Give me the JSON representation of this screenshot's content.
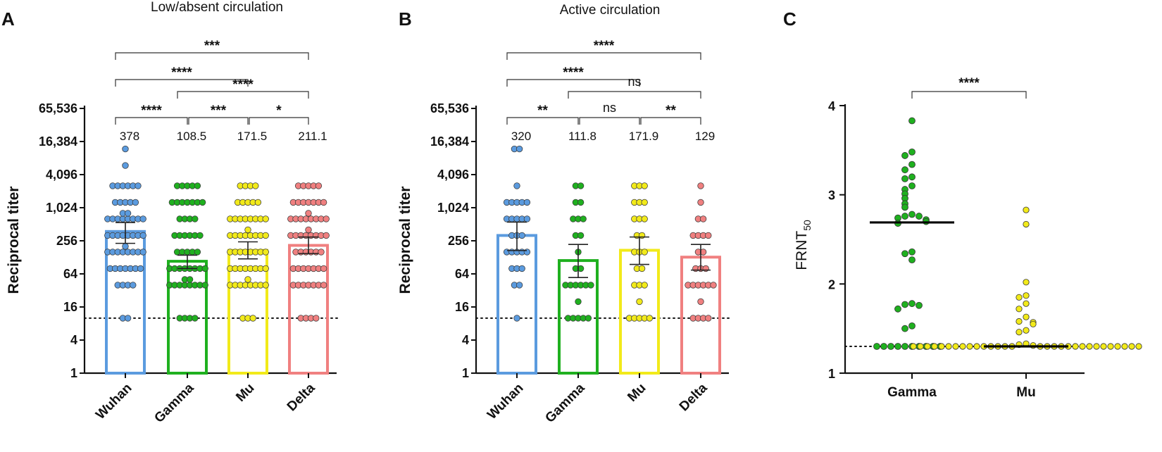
{
  "colors": {
    "wuhan": "#5b9bdf",
    "gamma": "#1fb01f",
    "mu": "#f2ea1a",
    "delta": "#f08080",
    "axis": "#111111"
  },
  "chart_data": [
    {
      "panel": "A",
      "type": "bar",
      "title": "Low/absent circulation",
      "ylabel": "Reciprocal titer",
      "yscale": "log2",
      "ylim": [
        1,
        65536
      ],
      "yticks": [
        1,
        4,
        16,
        64,
        256,
        1024,
        4096,
        16384,
        65536
      ],
      "ytick_labels": [
        "1",
        "4",
        "16",
        "64",
        "256",
        "1,024",
        "4,096",
        "16,384",
        "65,536"
      ],
      "threshold": 10,
      "categories": [
        "Wuhan",
        "Gamma",
        "Mu",
        "Delta"
      ],
      "values": [
        378,
        108.5,
        171.5,
        211.1
      ],
      "value_labels": [
        "378",
        "108.5",
        "171.5",
        "211.1"
      ],
      "error_low": [
        230,
        80,
        120,
        150
      ],
      "error_high": [
        550,
        140,
        245,
        300
      ],
      "points": {
        "Wuhan": [
          10,
          10,
          40,
          40,
          40,
          40,
          80,
          80,
          80,
          80,
          80,
          80,
          80,
          160,
          160,
          160,
          160,
          160,
          160,
          160,
          160,
          160,
          320,
          320,
          320,
          320,
          320,
          320,
          320,
          320,
          640,
          640,
          640,
          640,
          640,
          640,
          640,
          640,
          640,
          640,
          1280,
          1280,
          1280,
          1280,
          1280,
          2560,
          2560,
          2560,
          2560,
          2560,
          2560,
          6000,
          12000
        ],
        "Gamma": [
          10,
          10,
          10,
          10,
          40,
          40,
          40,
          40,
          40,
          40,
          40,
          40,
          40,
          40,
          80,
          80,
          80,
          80,
          80,
          80,
          80,
          80,
          160,
          160,
          160,
          160,
          160,
          320,
          320,
          320,
          320,
          320,
          320,
          640,
          640,
          640,
          640,
          1280,
          1280,
          1280,
          1280,
          1280,
          1280,
          1280,
          2560,
          2560,
          2560,
          2560,
          2560
        ],
        "Mu": [
          10,
          10,
          10,
          40,
          40,
          40,
          40,
          40,
          40,
          40,
          40,
          40,
          80,
          80,
          80,
          80,
          80,
          80,
          80,
          80,
          160,
          160,
          160,
          160,
          160,
          160,
          160,
          160,
          320,
          320,
          320,
          320,
          320,
          320,
          320,
          320,
          320,
          640,
          640,
          640,
          640,
          640,
          640,
          640,
          640,
          1280,
          1280,
          1280,
          1280,
          1280,
          2560,
          2560,
          2560,
          2560
        ],
        "Delta": [
          10,
          10,
          10,
          10,
          40,
          40,
          40,
          40,
          40,
          40,
          40,
          80,
          80,
          80,
          80,
          80,
          80,
          80,
          160,
          160,
          160,
          160,
          160,
          160,
          320,
          320,
          320,
          320,
          320,
          320,
          320,
          320,
          320,
          640,
          640,
          640,
          640,
          640,
          640,
          640,
          640,
          640,
          1280,
          1280,
          1280,
          1280,
          1280,
          1280,
          1280,
          2560,
          2560,
          2560,
          2560,
          2560
        ]
      },
      "comparisons": [
        {
          "from": "Wuhan",
          "to": "Gamma",
          "label": "****"
        },
        {
          "from": "Gamma",
          "to": "Mu",
          "label": "***"
        },
        {
          "from": "Mu",
          "to": "Delta",
          "label": "*"
        },
        {
          "from": "Wuhan",
          "to": "Mu",
          "label": "****"
        },
        {
          "from": "Gamma",
          "to": "Delta",
          "label": "****"
        },
        {
          "from": "Wuhan",
          "to": "Delta",
          "label": "***"
        }
      ]
    },
    {
      "panel": "B",
      "type": "bar",
      "title": "Active circulation",
      "ylabel": "Reciprocal titer",
      "yscale": "log2",
      "ylim": [
        1,
        65536
      ],
      "yticks": [
        1,
        4,
        16,
        64,
        256,
        1024,
        4096,
        16384,
        65536
      ],
      "ytick_labels": [
        "1",
        "4",
        "16",
        "64",
        "256",
        "1,024",
        "4,096",
        "16,384",
        "65,536"
      ],
      "threshold": 10,
      "categories": [
        "Wuhan",
        "Gamma",
        "Mu",
        "Delta"
      ],
      "values": [
        320,
        111.8,
        171.9,
        129
      ],
      "value_labels": [
        "320",
        "111.8",
        "171.9",
        "129"
      ],
      "error_low": [
        170,
        55,
        95,
        75
      ],
      "error_high": [
        560,
        220,
        300,
        220
      ],
      "points": {
        "Wuhan": [
          10,
          40,
          40,
          80,
          80,
          80,
          160,
          160,
          160,
          160,
          160,
          320,
          320,
          320,
          640,
          640,
          640,
          640,
          640,
          1280,
          1280,
          1280,
          1280,
          1280,
          2560,
          12000,
          12000
        ],
        "Gamma": [
          10,
          10,
          10,
          10,
          10,
          20,
          40,
          40,
          40,
          40,
          40,
          40,
          80,
          80,
          160,
          320,
          320,
          640,
          640,
          640,
          1280,
          1280,
          2560,
          2560
        ],
        "Mu": [
          10,
          10,
          10,
          10,
          10,
          20,
          40,
          40,
          40,
          80,
          80,
          160,
          160,
          160,
          320,
          320,
          640,
          640,
          640,
          1280,
          1280,
          1280,
          2560,
          2560,
          2560
        ],
        "Delta": [
          10,
          10,
          10,
          10,
          20,
          40,
          40,
          40,
          40,
          40,
          40,
          80,
          80,
          80,
          160,
          160,
          320,
          320,
          320,
          320,
          640,
          640,
          1280,
          2560
        ]
      },
      "comparisons": [
        {
          "from": "Wuhan",
          "to": "Gamma",
          "label": "**"
        },
        {
          "from": "Gamma",
          "to": "Mu",
          "label": "ns"
        },
        {
          "from": "Mu",
          "to": "Delta",
          "label": "**"
        },
        {
          "from": "Wuhan",
          "to": "Mu",
          "label": "****"
        },
        {
          "from": "Gamma",
          "to": "Delta",
          "label": "ns"
        },
        {
          "from": "Wuhan",
          "to": "Delta",
          "label": "****"
        }
      ]
    },
    {
      "panel": "C",
      "type": "scatter",
      "ylabel": "FRNT",
      "ylabel_sub": "50",
      "ylim": [
        1,
        4
      ],
      "yticks": [
        1,
        2,
        3,
        4
      ],
      "ytick_labels": [
        "1",
        "2",
        "3",
        "4"
      ],
      "threshold": 1.3,
      "categories": [
        "Gamma",
        "Mu"
      ],
      "medians": [
        2.69,
        1.3
      ],
      "points": {
        "Gamma": [
          3.83,
          3.48,
          3.44,
          3.34,
          3.28,
          3.2,
          3.18,
          3.1,
          3.06,
          3.01,
          2.96,
          2.9,
          2.86,
          2.78,
          2.76,
          2.76,
          2.74,
          2.72,
          2.7,
          2.68,
          2.36,
          2.34,
          2.27,
          1.78,
          1.77,
          1.76,
          1.72,
          1.53,
          1.5,
          1.3,
          1.3,
          1.3,
          1.3,
          1.3,
          1.3,
          1.3,
          1.3,
          1.3,
          1.3
        ],
        "Mu": [
          2.83,
          2.67,
          2.02,
          1.87,
          1.85,
          1.78,
          1.72,
          1.63,
          1.58,
          1.57,
          1.55,
          1.48,
          1.46,
          1.33,
          1.32,
          1.31,
          1.3,
          1.3,
          1.3,
          1.3,
          1.3,
          1.3,
          1.3,
          1.3,
          1.3,
          1.3,
          1.3,
          1.3,
          1.3,
          1.3,
          1.3,
          1.3,
          1.3,
          1.3,
          1.3,
          1.3,
          1.3,
          1.3,
          1.3,
          1.3,
          1.3,
          1.3,
          1.3,
          1.3,
          1.3,
          1.3
        ]
      },
      "comparisons": [
        {
          "from": "Gamma",
          "to": "Mu",
          "label": "****"
        }
      ]
    }
  ]
}
